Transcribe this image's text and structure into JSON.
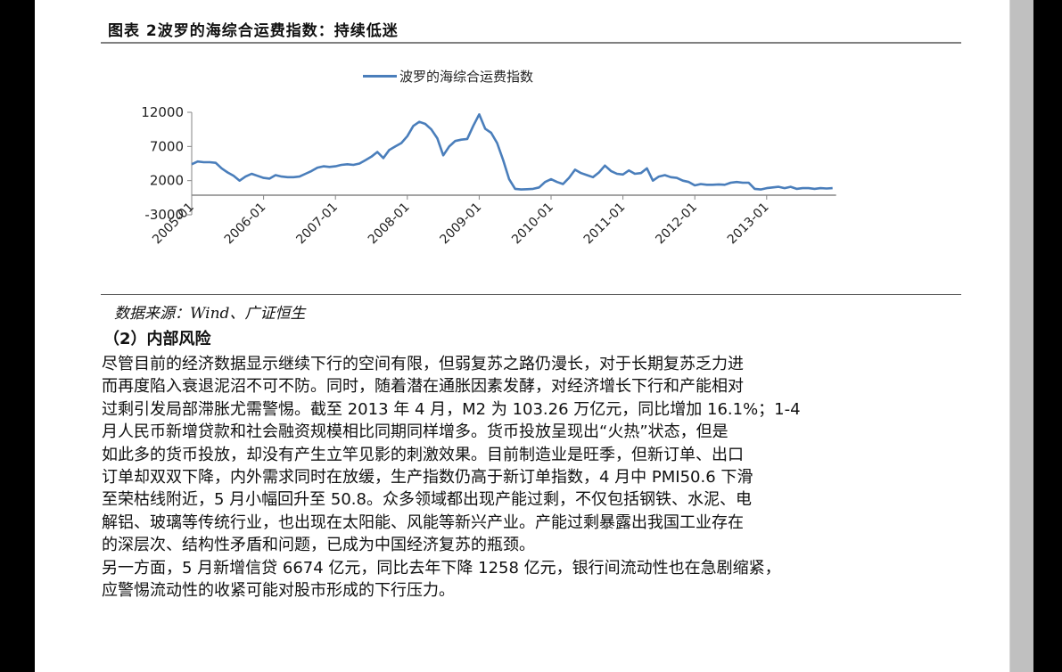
{
  "figure": {
    "title": "图表 2波罗的海综合运费指数：持续低迷",
    "source": "数据来源：Wind、广证恒生"
  },
  "section": {
    "heading": "（2）内部风险"
  },
  "paragraphs": {
    "p1_lines": [
      "尽管目前的经济数据显示继续下行的空间有限，但弱复苏之路仍漫长，对于长期复苏乏力进",
      "而再度陷入衰退泥沼不可不防。同时，随着潜在通胀因素发酵，对经济增长下行和产能相对",
      "过剩引发局部滞胀尤需警惕。截至 2013 年 4 月，M2 为 103.26 万亿元，同比增加 16.1%；1-4",
      "月人民币新增贷款和社会融资规模相比同期同样增多。货币投放呈现出“火热”状态，但是",
      "如此多的货币投放，却没有产生立竿见影的刺激效果。目前制造业是旺季，但新订单、出口",
      "订单却双双下降，内外需求同时在放缓，生产指数仍高于新订单指数，4 月中 PMI50.6 下滑",
      "至荣枯线附近，5 月小幅回升至 50.8。众多领域都出现产能过剩，不仅包括钢铁、水泥、电",
      "解铝、玻璃等传统行业，也出现在太阳能、风能等新兴产业。产能过剩暴露出我国工业存在",
      "的深层次、结构性矛盾和问题，已成为中国经济复苏的瓶颈。"
    ],
    "p2_lines": [
      "另一方面，5 月新增信贷 6674 亿元，同比去年下降 1258 亿元，银行间流动性也在急剧缩紧，",
      "应警惕流动性的收紧可能对股市形成的下行压力。"
    ]
  },
  "colors": {
    "series": "#4a7ebb",
    "axis": "#868686",
    "rule": "#808080"
  },
  "chart_data": {
    "type": "line",
    "title": "",
    "legend": [
      "波罗的海综合运费指数"
    ],
    "legend_position": "top",
    "xlabel": "",
    "ylabel": "",
    "ylim": [
      -3000,
      12000
    ],
    "yticks": [
      12000,
      7000,
      2000,
      -3000
    ],
    "grid": false,
    "x_tick_labels": [
      "2005-01",
      "2006-01",
      "2007-01",
      "2008-01",
      "2009-01",
      "2010-01",
      "2011-01",
      "2012-01",
      "2013-01"
    ],
    "x_start": "2005-01",
    "x_step": "month",
    "series": [
      {
        "name": "波罗的海综合运费指数",
        "values": [
          4400,
          4800,
          4700,
          4700,
          4600,
          3800,
          3200,
          2700,
          2000,
          2600,
          3000,
          2700,
          2400,
          2300,
          2800,
          2600,
          2500,
          2500,
          2600,
          3000,
          3400,
          3900,
          4100,
          4000,
          4100,
          4300,
          4400,
          4300,
          4500,
          5000,
          5500,
          6200,
          5300,
          6500,
          7000,
          7500,
          8500,
          10000,
          10600,
          10300,
          9500,
          8200,
          5700,
          7000,
          7800,
          8000,
          8100,
          10000,
          11700,
          9600,
          9000,
          7500,
          5000,
          2200,
          800,
          700,
          750,
          800,
          1000,
          1800,
          2200,
          1800,
          1500,
          2400,
          3600,
          3100,
          2800,
          2500,
          3200,
          4200,
          3400,
          3000,
          2900,
          3500,
          3000,
          3100,
          3800,
          2000,
          2600,
          2800,
          2500,
          2400,
          2000,
          1800,
          1300,
          1500,
          1400,
          1400,
          1450,
          1400,
          1700,
          1800,
          1700,
          1700,
          800,
          700,
          900,
          1000,
          1100,
          900,
          1100,
          800,
          900,
          900,
          800,
          900,
          850,
          900
        ]
      }
    ]
  }
}
